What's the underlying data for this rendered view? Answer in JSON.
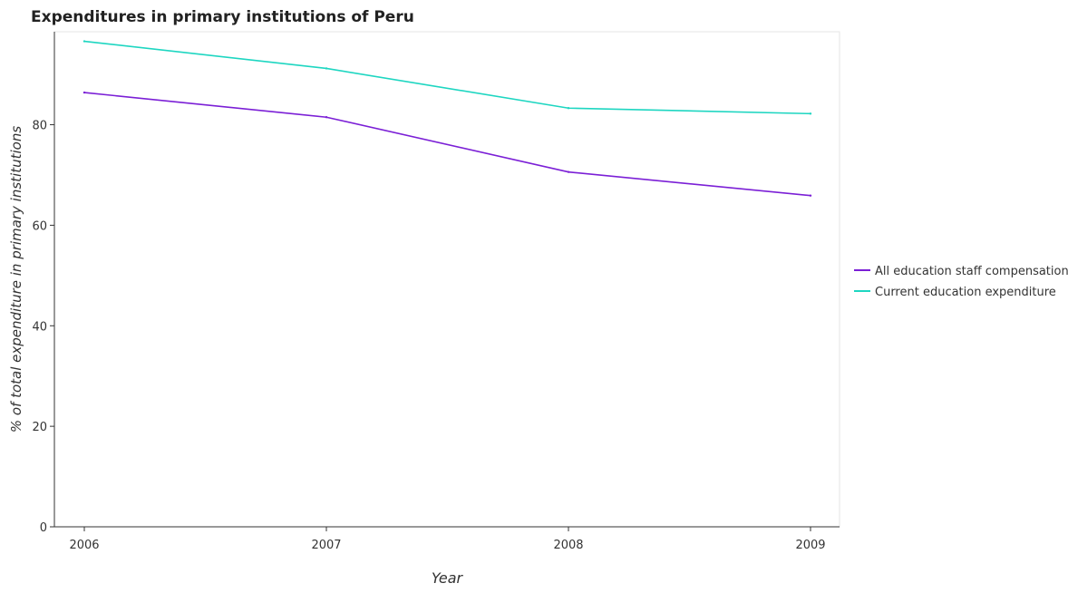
{
  "chart_data": {
    "type": "line",
    "title": "Expenditures in primary institutions of Peru",
    "xlabel": "Year",
    "ylabel": "% of total expenditure in primary institutions",
    "categories": [
      "2006",
      "2007",
      "2008",
      "2009"
    ],
    "ylim": [
      0,
      98.5
    ],
    "yticks": [
      0,
      20,
      40,
      60,
      80
    ],
    "ytick_labels": [
      "0",
      "20",
      "40",
      "60",
      "80"
    ],
    "grid": false,
    "legend_position": "right",
    "series": [
      {
        "name": "All education staff compensation",
        "color": "#7b1fd6",
        "values": [
          86.4,
          81.5,
          70.6,
          65.9
        ]
      },
      {
        "name": "Current education expenditure",
        "color": "#1ed6c1",
        "values": [
          96.6,
          91.2,
          83.3,
          82.2
        ]
      }
    ]
  }
}
